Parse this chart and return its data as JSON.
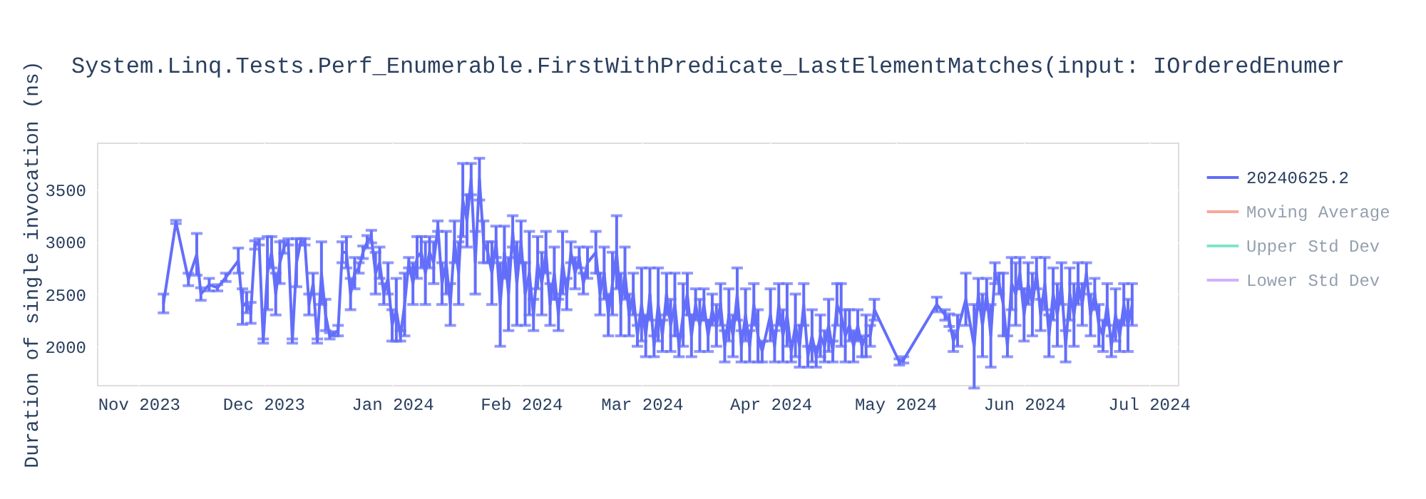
{
  "chart_data": {
    "type": "line",
    "title": "System.Linq.Tests.Perf_Enumerable.FirstWithPredicate_LastElementMatches(input: IOrderedEnumer",
    "ylabel": "Duration of single invocation (ns)",
    "xlim": [
      "2023-10-22",
      "2024-07-08"
    ],
    "xticks": [
      {
        "value": "2023-11-01",
        "label": "Nov 2023"
      },
      {
        "value": "2023-12-01",
        "label": "Dec 2023"
      },
      {
        "value": "2024-01-01",
        "label": "Jan 2024"
      },
      {
        "value": "2024-02-01",
        "label": "Feb 2024"
      },
      {
        "value": "2024-03-01",
        "label": "Mar 2024"
      },
      {
        "value": "2024-04-01",
        "label": "Apr 2024"
      },
      {
        "value": "2024-05-01",
        "label": "May 2024"
      },
      {
        "value": "2024-06-01",
        "label": "Jun 2024"
      },
      {
        "value": "2024-07-01",
        "label": "Jul 2024"
      }
    ],
    "ylim": [
      1630,
      3950
    ],
    "yticks": [
      2000,
      2500,
      3000,
      3500
    ],
    "grid": true,
    "legend": "top right",
    "marker": "none",
    "line_style": "solid",
    "series": [
      {
        "name": "20240625.2",
        "color": "#636efa",
        "x": [
          "2023-11-07",
          "2023-11-10",
          "2023-11-13",
          "2023-11-15",
          "2023-11-16",
          "2023-11-18",
          "2023-11-20",
          "2023-11-22",
          "2023-11-25",
          "2023-11-26",
          "2023-11-27",
          "2023-11-28",
          "2023-11-29",
          "2023-11-30",
          "2023-12-01",
          "2023-12-02",
          "2023-12-03",
          "2023-12-04",
          "2023-12-05",
          "2023-12-06",
          "2023-12-07",
          "2023-12-08",
          "2023-12-09",
          "2023-12-10",
          "2023-12-11",
          "2023-12-12",
          "2023-12-13",
          "2023-12-14",
          "2023-12-15",
          "2023-12-16",
          "2023-12-17",
          "2023-12-18",
          "2023-12-19",
          "2023-12-20",
          "2023-12-21",
          "2023-12-22",
          "2023-12-23",
          "2023-12-24",
          "2023-12-25",
          "2023-12-26",
          "2023-12-27",
          "2023-12-28",
          "2023-12-29",
          "2023-12-30",
          "2023-12-31",
          "2024-01-01",
          "2024-01-02",
          "2024-01-03",
          "2024-01-04",
          "2024-01-05",
          "2024-01-06",
          "2024-01-07",
          "2024-01-08",
          "2024-01-09",
          "2024-01-10",
          "2024-01-11",
          "2024-01-12",
          "2024-01-13",
          "2024-01-14",
          "2024-01-15",
          "2024-01-16",
          "2024-01-17",
          "2024-01-18",
          "2024-01-19",
          "2024-01-20",
          "2024-01-21",
          "2024-01-22",
          "2024-01-23",
          "2024-01-24",
          "2024-01-25",
          "2024-01-26",
          "2024-01-27",
          "2024-01-28",
          "2024-01-29",
          "2024-01-30",
          "2024-01-31",
          "2024-02-01",
          "2024-02-02",
          "2024-02-03",
          "2024-02-04",
          "2024-02-05",
          "2024-02-06",
          "2024-02-07",
          "2024-02-08",
          "2024-02-09",
          "2024-02-10",
          "2024-02-11",
          "2024-02-12",
          "2024-02-13",
          "2024-02-14",
          "2024-02-15",
          "2024-02-16",
          "2024-02-17",
          "2024-02-19",
          "2024-02-20",
          "2024-02-21",
          "2024-02-22",
          "2024-02-23",
          "2024-02-24",
          "2024-02-25",
          "2024-02-26",
          "2024-02-27",
          "2024-02-28",
          "2024-02-29",
          "2024-03-01",
          "2024-03-02",
          "2024-03-03",
          "2024-03-04",
          "2024-03-05",
          "2024-03-06",
          "2024-03-07",
          "2024-03-08",
          "2024-03-09",
          "2024-03-10",
          "2024-03-11",
          "2024-03-12",
          "2024-03-13",
          "2024-03-14",
          "2024-03-15",
          "2024-03-16",
          "2024-03-17",
          "2024-03-18",
          "2024-03-19",
          "2024-03-20",
          "2024-03-21",
          "2024-03-22",
          "2024-03-23",
          "2024-03-24",
          "2024-03-25",
          "2024-03-26",
          "2024-03-27",
          "2024-03-28",
          "2024-03-29",
          "2024-03-30",
          "2024-04-01",
          "2024-04-02",
          "2024-04-03",
          "2024-04-04",
          "2024-04-05",
          "2024-04-06",
          "2024-04-07",
          "2024-04-08",
          "2024-04-09",
          "2024-04-10",
          "2024-04-11",
          "2024-04-12",
          "2024-04-13",
          "2024-04-14",
          "2024-04-15",
          "2024-04-16",
          "2024-04-17",
          "2024-04-18",
          "2024-04-19",
          "2024-04-20",
          "2024-04-21",
          "2024-04-22",
          "2024-04-23",
          "2024-04-24",
          "2024-04-25",
          "2024-04-26",
          "2024-05-02",
          "2024-05-03",
          "2024-05-11",
          "2024-05-13",
          "2024-05-14",
          "2024-05-15",
          "2024-05-16",
          "2024-05-18",
          "2024-05-20",
          "2024-05-21",
          "2024-05-22",
          "2024-05-23",
          "2024-05-24",
          "2024-05-25",
          "2024-05-26",
          "2024-05-27",
          "2024-05-28",
          "2024-05-29",
          "2024-05-30",
          "2024-05-31",
          "2024-06-01",
          "2024-06-02",
          "2024-06-03",
          "2024-06-04",
          "2024-06-05",
          "2024-06-06",
          "2024-06-07",
          "2024-06-08",
          "2024-06-09",
          "2024-06-10",
          "2024-06-11",
          "2024-06-12",
          "2024-06-13",
          "2024-06-14",
          "2024-06-15",
          "2024-06-16",
          "2024-06-17",
          "2024-06-18",
          "2024-06-19",
          "2024-06-20",
          "2024-06-21",
          "2024-06-22",
          "2024-06-23",
          "2024-06-24",
          "2024-06-25",
          "2024-06-26",
          "2024-06-27"
        ],
        "values": [
          2410,
          3190,
          2640,
          2880,
          2500,
          2590,
          2560,
          2660,
          2820,
          2380,
          2420,
          2320,
          2970,
          3000,
          2050,
          2700,
          2900,
          2500,
          2800,
          2950,
          3000,
          2050,
          2800,
          3000,
          3000,
          2400,
          2600,
          2050,
          2700,
          2300,
          2100,
          2120,
          2150,
          2900,
          2900,
          2500,
          2700,
          2750,
          2900,
          3000,
          3050,
          2700,
          2800,
          2500,
          2650,
          2200,
          2350,
          2100,
          2400,
          2800,
          2600,
          2850,
          2900,
          2700,
          2900,
          2800,
          3150,
          2600,
          2800,
          2400,
          3000,
          2700,
          3400,
          3200,
          3600,
          2800,
          3600,
          3000,
          2900,
          2700,
          3000,
          2400,
          2900,
          2500,
          3100,
          2600,
          3000,
          2500,
          2700,
          2300,
          2800,
          2600,
          2900,
          2400,
          2700,
          2300,
          2800,
          2500,
          2900,
          2700,
          2850,
          2600,
          2800,
          2900,
          2500,
          2700,
          2300,
          2600,
          2900,
          2400,
          2700,
          2300,
          2500,
          2100,
          2400,
          2100,
          2500,
          2000,
          2400,
          2100,
          2500,
          2200,
          2400,
          2000,
          2300,
          2500,
          2100,
          2400,
          2200,
          2400,
          2100,
          2350,
          2200,
          2400,
          2000,
          2300,
          2100,
          2500,
          2000,
          2300,
          2000,
          2400,
          2100,
          1950,
          2300,
          2000,
          2400,
          2100,
          2300,
          1950,
          2200,
          2000,
          2400,
          1900,
          2100,
          1900,
          2100,
          2000,
          2200,
          1950,
          2400,
          2300,
          2100,
          2200,
          2000,
          2200,
          2000,
          2100,
          2100,
          2350,
          1850,
          1870,
          2400,
          2300,
          2250,
          2050,
          2150,
          2450,
          2000,
          2500,
          2200,
          2500,
          2100,
          2700,
          2600,
          2400,
          2000,
          2600,
          2500,
          2700,
          2300,
          2600,
          2400,
          2700,
          2300,
          2600,
          2100,
          2500,
          2300,
          2600,
          2000,
          2500,
          2300,
          2600,
          2400,
          2700,
          2300,
          2500,
          2200,
          2100,
          2400,
          2000,
          2300,
          2100,
          2400,
          2200,
          2400
        ],
        "errors": [
          90,
          15,
          60,
          200,
          60,
          60,
          30,
          40,
          120,
          170,
          100,
          100,
          40,
          30,
          20,
          350,
          150,
          200,
          200,
          60,
          30,
          20,
          230,
          30,
          30,
          100,
          100,
          20,
          300,
          150,
          30,
          20,
          50,
          100,
          150,
          150,
          150,
          50,
          60,
          60,
          60,
          200,
          150,
          100,
          150,
          150,
          300,
          50,
          300,
          50,
          200,
          200,
          150,
          300,
          150,
          200,
          50,
          200,
          300,
          200,
          200,
          300,
          350,
          250,
          150,
          300,
          200,
          200,
          100,
          300,
          150,
          400,
          250,
          350,
          150,
          400,
          200,
          300,
          400,
          150,
          250,
          300,
          200,
          200,
          250,
          150,
          300,
          150,
          100,
          150,
          100,
          100,
          150,
          200,
          200,
          250,
          200,
          300,
          350,
          300,
          250,
          200,
          200,
          100,
          350,
          200,
          250,
          100,
          350,
          150,
          200,
          250,
          300,
          100,
          300,
          200,
          200,
          150,
          250,
          150,
          150,
          150,
          200,
          200,
          150,
          250,
          200,
          250,
          150,
          250,
          150,
          200,
          250,
          100,
          250,
          150,
          200,
          250,
          300,
          100,
          300,
          200,
          200,
          100,
          250,
          100,
          200,
          150,
          250,
          100,
          200,
          300,
          250,
          150,
          150,
          150,
          100,
          200,
          100,
          100,
          30,
          30,
          70,
          50,
          60,
          100,
          150,
          250,
          400,
          150,
          300,
          150,
          300,
          100,
          100,
          300,
          100,
          250,
          300,
          150,
          250,
          200,
          300,
          150,
          150,
          250,
          200,
          250,
          300,
          200,
          150,
          250,
          300,
          200,
          200,
          100,
          200,
          150,
          200,
          150,
          200,
          100,
          250,
          150,
          200,
          250,
          200
        ]
      },
      {
        "name": "Moving Average",
        "color": "#ef553b"
      },
      {
        "name": "Upper Std Dev",
        "color": "#00cc96"
      },
      {
        "name": "Lower Std Dev",
        "color": "#ab63fa"
      }
    ]
  }
}
